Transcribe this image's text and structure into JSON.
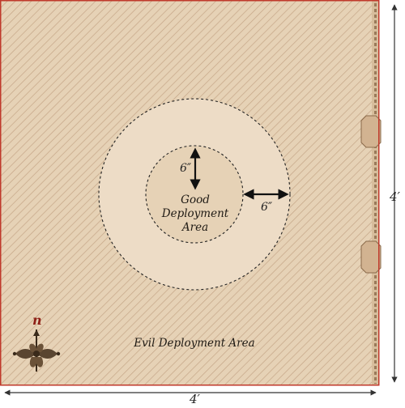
{
  "board": {
    "width_label": "4′",
    "height_label": "4′",
    "colors": {
      "parchment": "#e6d2b6",
      "hatch": "#c7a98a",
      "border": "#c0392b",
      "ring": "#eddcc6",
      "line": "#222222",
      "compass": "#8e1f16"
    }
  },
  "zones": {
    "good_deployment": {
      "line1": "Good",
      "line2": "Deployment",
      "line3": "Area"
    },
    "evil_deployment": {
      "label": "Evil Deployment Area"
    }
  },
  "measurements": {
    "inner_radius_label": "6″",
    "ring_width_label": "6″"
  },
  "compass": {
    "letter": "n",
    "icon": "fleur-compass-icon"
  }
}
